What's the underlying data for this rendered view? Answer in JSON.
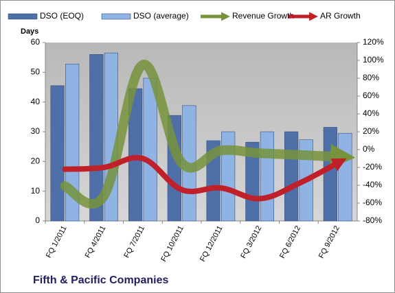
{
  "chart_data": {
    "type": "bar_line",
    "title": "Fifth & Pacific Companies",
    "y_axis_label": "Days",
    "categories": [
      "FQ 1/2011",
      "FQ 4/2011",
      "FQ 7/2011",
      "FQ 10/2011",
      "FQ 12/2011",
      "FQ 3/2012",
      "FQ 6/2012",
      "FQ 9/2012"
    ],
    "series": [
      {
        "name": "DSO (EOQ)",
        "color": "#4f6fa8",
        "type": "bar",
        "values": [
          45.5,
          56,
          44.5,
          35.5,
          27,
          26.5,
          30,
          31.5
        ]
      },
      {
        "name": "DSO (average)",
        "color": "#8fb4e3",
        "type": "bar",
        "values": [
          52.8,
          56.5,
          48,
          38.8,
          30,
          30,
          27.3,
          29.5
        ]
      },
      {
        "name": "Revenue Growth",
        "color": "#77933c",
        "type": "line",
        "axis": "y2",
        "values": [
          -41,
          -52,
          95,
          -15,
          -1,
          -4,
          -6,
          -8
        ]
      },
      {
        "name": "AR Growth",
        "color": "#c0202a",
        "type": "line",
        "axis": "y2",
        "values": [
          -22,
          -20,
          -10,
          -45,
          -43,
          -55,
          -38,
          -15
        ]
      }
    ],
    "ylim": [
      0,
      60
    ],
    "yticks": [
      0,
      10,
      20,
      30,
      40,
      50,
      60
    ],
    "y2lim": [
      -80,
      120
    ],
    "y2ticks": [
      {
        "value": -80,
        "label": "-80%"
      },
      {
        "value": -60,
        "label": "-60%"
      },
      {
        "value": -40,
        "label": "-40%"
      },
      {
        "value": -20,
        "label": "-20%"
      },
      {
        "value": 0,
        "label": "0%"
      },
      {
        "value": 20,
        "label": "20%"
      },
      {
        "value": 40,
        "label": "40%"
      },
      {
        "value": 60,
        "label": "60%"
      },
      {
        "value": 80,
        "label": "80%"
      },
      {
        "value": 100,
        "label": "100%"
      },
      {
        "value": 120,
        "label": "120%"
      }
    ],
    "legend": "top"
  }
}
